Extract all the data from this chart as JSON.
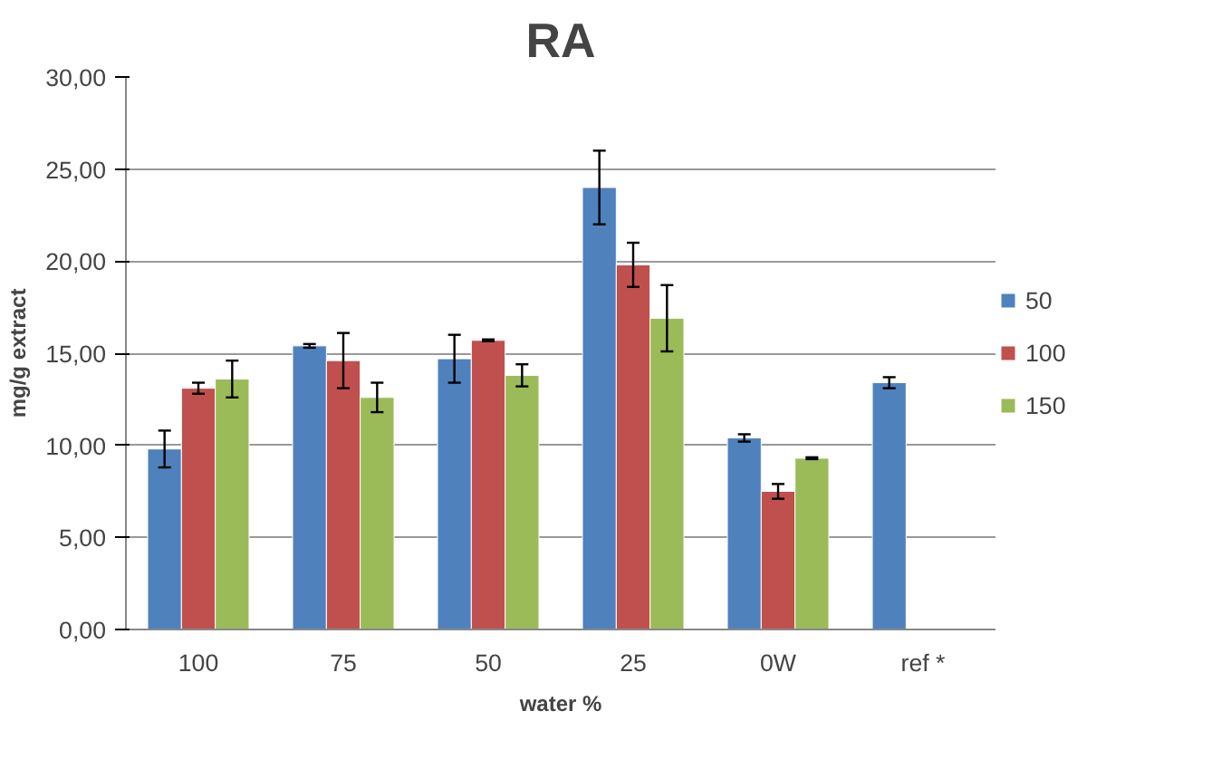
{
  "chart_data": {
    "type": "bar",
    "title": "RA",
    "xlabel": "water %",
    "ylabel": "mg/g extract",
    "categories": [
      "100",
      "75",
      "50",
      "25",
      "0W",
      "ref *"
    ],
    "series": [
      {
        "name": "50",
        "color": "#4f81bd",
        "values": [
          9.8,
          15.4,
          14.7,
          24.0,
          10.4,
          13.4
        ],
        "errors": [
          1.0,
          0.1,
          1.3,
          2.0,
          0.2,
          0.3
        ]
      },
      {
        "name": "100",
        "color": "#c0504d",
        "values": [
          13.1,
          14.6,
          15.7,
          19.8,
          7.5,
          null
        ],
        "errors": [
          0.3,
          1.5,
          0.05,
          1.2,
          0.4,
          null
        ]
      },
      {
        "name": "150",
        "color": "#9bbb59",
        "values": [
          13.6,
          12.6,
          13.8,
          16.9,
          9.3,
          null
        ],
        "errors": [
          1.0,
          0.8,
          0.6,
          1.8,
          0.05,
          null
        ]
      }
    ],
    "ylim": [
      0,
      30
    ],
    "yticks": [
      {
        "value": 0,
        "label": "0,00"
      },
      {
        "value": 5,
        "label": "5,00"
      },
      {
        "value": 10,
        "label": "10,00"
      },
      {
        "value": 15,
        "label": "15,00"
      },
      {
        "value": 20,
        "label": "20,00"
      },
      {
        "value": 25,
        "label": "25,00"
      },
      {
        "value": 30,
        "label": "30,00"
      }
    ],
    "grid": "y",
    "legend": "right"
  }
}
